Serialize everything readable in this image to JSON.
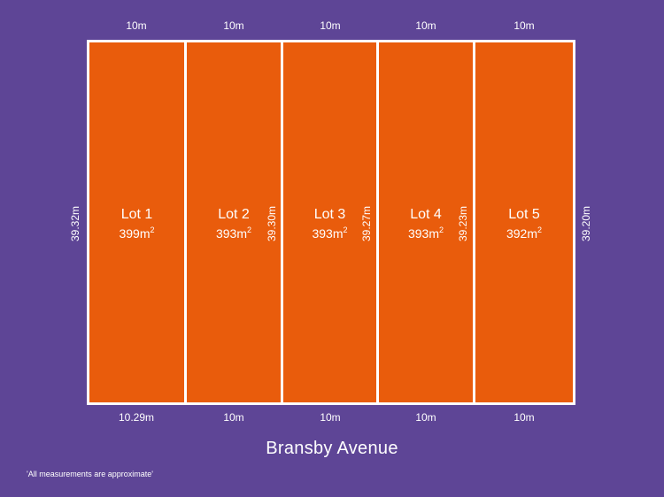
{
  "top_widths": [
    "10m",
    "10m",
    "10m",
    "10m",
    "10m"
  ],
  "bottom_widths": [
    "10.29m",
    "10m",
    "10m",
    "10m",
    "10m"
  ],
  "side_depths": [
    "39.32m",
    "39.30m",
    "39.27m",
    "39.23m",
    "39.20m"
  ],
  "lots": [
    {
      "name": "Lot 1",
      "area": "399m",
      "unit_sup": "2"
    },
    {
      "name": "Lot 2",
      "area": "393m",
      "unit_sup": "2"
    },
    {
      "name": "Lot 3",
      "area": "393m",
      "unit_sup": "2"
    },
    {
      "name": "Lot 4",
      "area": "393m",
      "unit_sup": "2"
    },
    {
      "name": "Lot 5",
      "area": "392m",
      "unit_sup": "2"
    }
  ],
  "street_name": "Bransby Avenue",
  "footnote": "'All measurements are approximate'",
  "colors": {
    "background": "#5e4596",
    "lot_fill": "#e95c0c",
    "line": "#ffffff"
  }
}
